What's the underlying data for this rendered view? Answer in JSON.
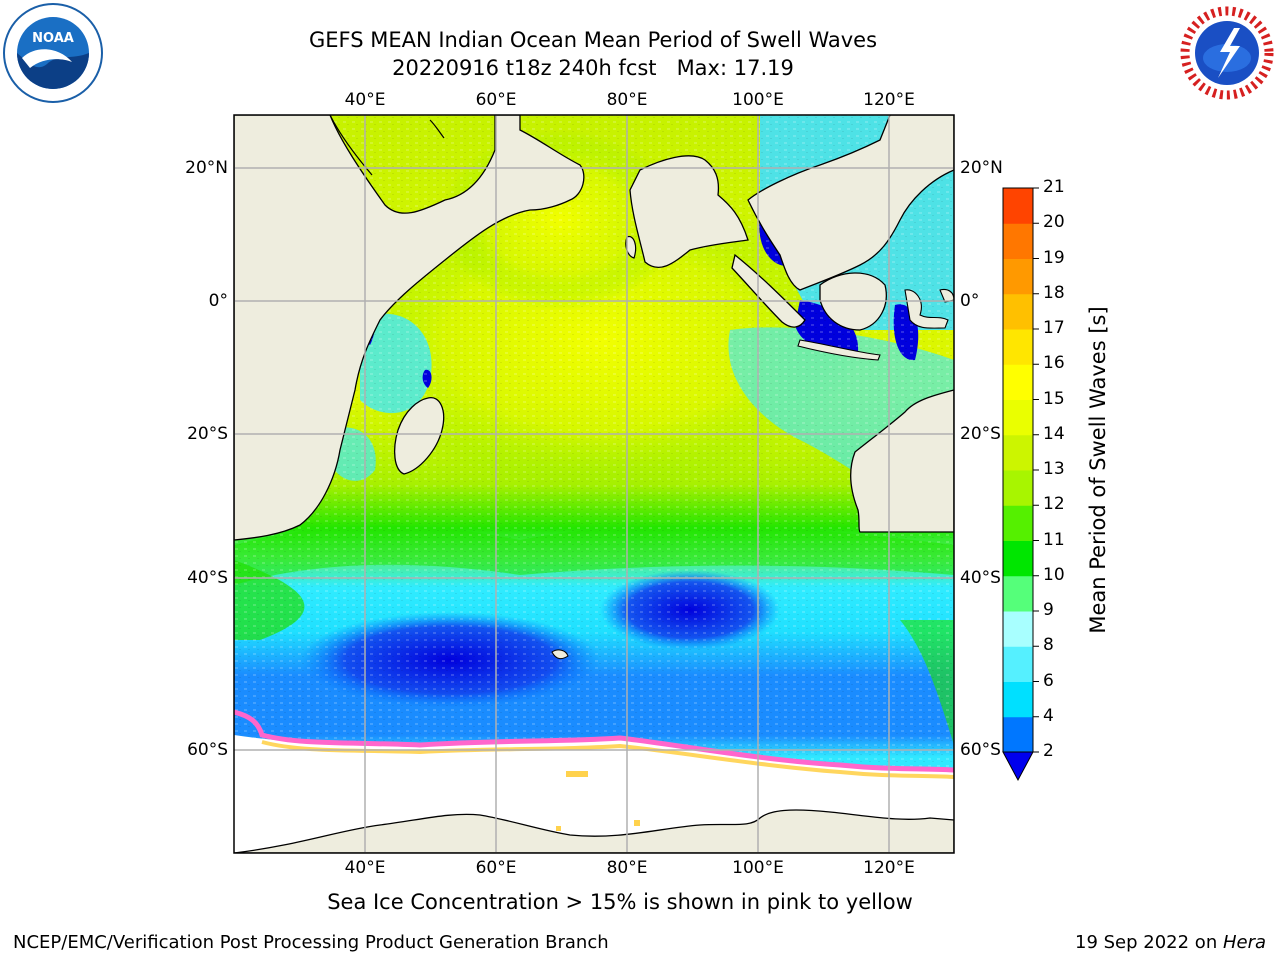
{
  "title_line1": "GEFS MEAN Indian Ocean Mean Period of Swell Waves",
  "title_line2": "20220916 t18z 240h fcst   Max: 17.19",
  "lon_labels": [
    "40°E",
    "60°E",
    "80°E",
    "100°E",
    "120°E"
  ],
  "lat_labels": [
    "20°N",
    "0°",
    "20°S",
    "40°S",
    "60°S"
  ],
  "colorbar": {
    "label": "Mean Period of Swell Waves [s]",
    "ticks": [
      "2",
      "4",
      "6",
      "8",
      "9",
      "10",
      "11",
      "12",
      "13",
      "14",
      "15",
      "16",
      "17",
      "18",
      "19",
      "20",
      "21"
    ],
    "colors": [
      "#0077ff",
      "#00e0ff",
      "#55f0ff",
      "#a8ffff",
      "#55ff7a",
      "#00e600",
      "#55f000",
      "#a8f500",
      "#ccf500",
      "#eaff00",
      "#ffff00",
      "#ffe600",
      "#ffc000",
      "#ff9900",
      "#ff7700",
      "#ff4400",
      "#ff1800",
      "#ff0000"
    ],
    "extend_color": "#0000ee"
  },
  "caption": "Sea Ice Concentration > 15% is shown in pink to yellow",
  "footer_left": "NCEP/EMC/Verification Post Processing Product Generation Branch",
  "footer_right_prefix": "19 Sep 2022 on ",
  "footer_right_host": "Hera",
  "logos": {
    "left": "NOAA",
    "right": "NATIONAL WEATHER SERVICE"
  },
  "colors": {
    "land": "#eeedde",
    "ice_white": "#ffffff",
    "ice_pink": "#ff66cc",
    "ice_yellow": "#ffd24d",
    "grid": "#b0b0b0"
  }
}
